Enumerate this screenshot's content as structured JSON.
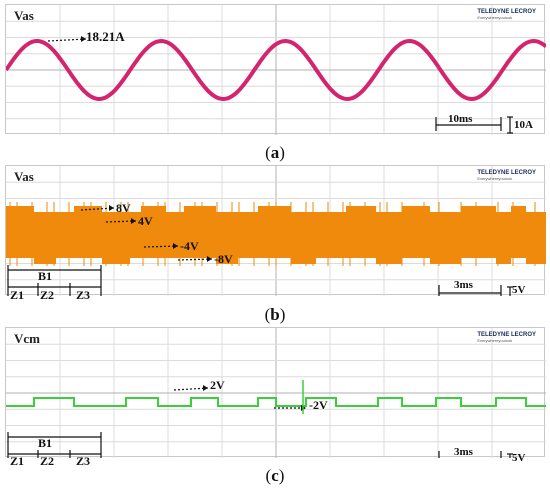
{
  "panels": [
    {
      "channel": "Vas",
      "brand": "TELEDYNE LECROY",
      "brand_sub": "Everywhereyoulook",
      "caption_letter": "a",
      "annotation_peak": "18.21A",
      "time_scale": "10ms",
      "amp_scale": "10A",
      "trace_color": "#d4246e"
    },
    {
      "channel": "Vas",
      "brand": "TELEDYNE LECROY",
      "brand_sub": "Everywhereyoulook",
      "caption_letter": "b",
      "levels": [
        "8V",
        "4V",
        "-4V",
        "-8V"
      ],
      "block_label": "B1",
      "zones": [
        "Z1",
        "Z2",
        "Z3"
      ],
      "time_scale": "3ms",
      "amp_scale": "5V",
      "trace_color": "#f08a0c"
    },
    {
      "channel": "Vcm",
      "brand": "TELEDYNE LECROY",
      "brand_sub": "Everywhereyoulook",
      "caption_letter": "c",
      "levels": [
        "2V",
        "-2V"
      ],
      "block_label": "B1",
      "zones": [
        "Z1",
        "Z2",
        "Z3"
      ],
      "time_scale": "3ms",
      "amp_scale": "5V",
      "trace_color": "#3ccf3c"
    }
  ]
}
